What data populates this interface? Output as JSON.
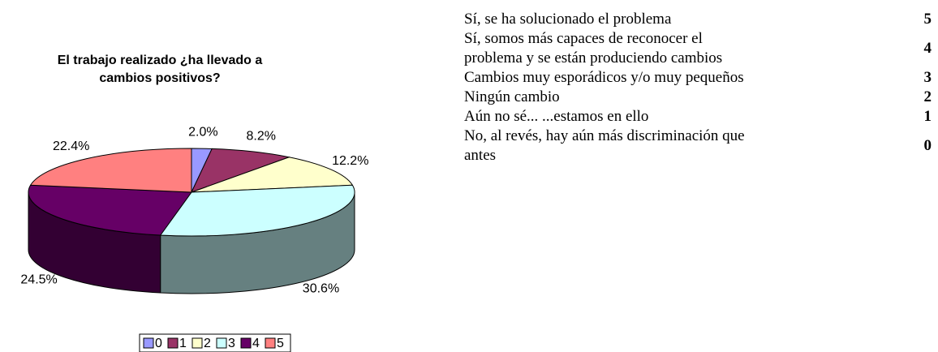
{
  "chart_data": {
    "type": "pie",
    "title": "El trabajo realizado ¿ha llevado a cambios positivos?",
    "categories": [
      "0",
      "1",
      "2",
      "3",
      "4",
      "5"
    ],
    "values": [
      2.0,
      8.2,
      12.2,
      30.6,
      24.5,
      22.4
    ],
    "value_labels": [
      "2.0%",
      "8.2%",
      "12.2%",
      "30.6%",
      "24.5%",
      "22.4%"
    ],
    "colors": [
      "#9999ff",
      "#993366",
      "#ffffcc",
      "#ccffff",
      "#660066",
      "#ff8080"
    ],
    "legend": "bottom"
  },
  "table": {
    "rows": [
      [
        "Sí, se ha solucionado el problema",
        5
      ],
      [
        "Sí, somos más capaces de reconocer el problema y se están produciendo cambios",
        4
      ],
      [
        "Cambios muy esporádicos y/o muy pequeños",
        3
      ],
      [
        "Ningún cambio",
        2
      ],
      [
        "Aún no sé... ...estamos en ello",
        1
      ],
      [
        "No, al revés, hay aún más discriminación que antes",
        0
      ]
    ]
  }
}
